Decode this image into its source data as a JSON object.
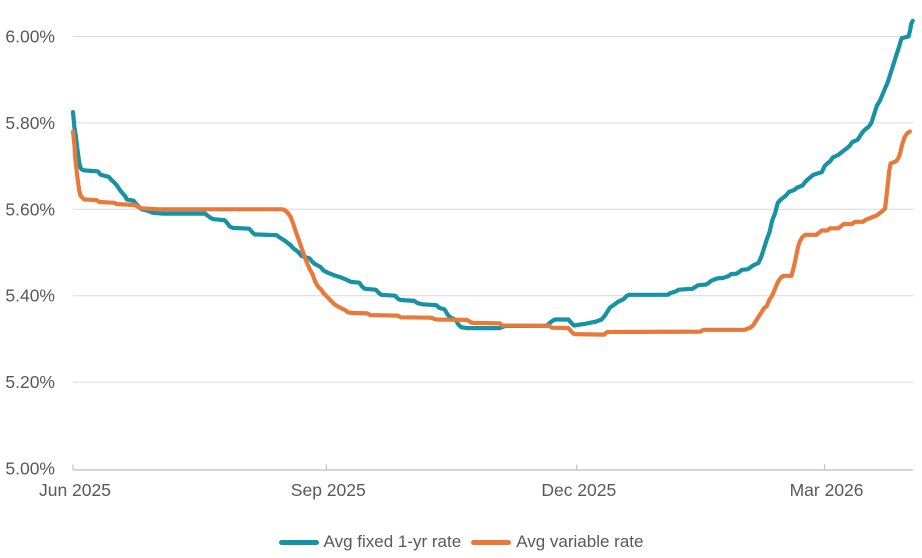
{
  "chart_data": {
    "type": "line",
    "title": "",
    "grid": true,
    "legend_position": "bottom",
    "x_axis": {
      "start_date": "2025-06-01",
      "unit": "days_since_start",
      "tick_labels": [
        "Jun 2025",
        "Sep 2025",
        "Dec 2025",
        "Mar 2026"
      ],
      "tick_days": [
        0,
        92,
        183,
        273
      ],
      "range_days": [
        0,
        305
      ]
    },
    "y_axis": {
      "tick_labels": [
        "5.00%",
        "5.20%",
        "5.40%",
        "5.60%",
        "5.80%",
        "6.00%"
      ],
      "tick_values": [
        5.0,
        5.2,
        5.4,
        5.6,
        5.8,
        6.0
      ],
      "ylim": [
        5.0,
        6.05
      ],
      "format": "percent"
    },
    "series": [
      {
        "key": "fixed-rate-line",
        "name": "Avg fixed 1-yr rate",
        "color": "#1692A4",
        "points": [
          [
            0,
            5.825
          ],
          [
            0.5,
            5.79
          ],
          [
            1,
            5.77
          ],
          [
            1.5,
            5.745
          ],
          [
            2,
            5.72
          ],
          [
            2.5,
            5.7
          ],
          [
            3,
            5.693
          ],
          [
            4,
            5.69
          ],
          [
            9,
            5.688
          ],
          [
            10,
            5.68
          ],
          [
            13,
            5.675
          ],
          [
            14,
            5.668
          ],
          [
            15,
            5.662
          ],
          [
            16,
            5.655
          ],
          [
            17,
            5.645
          ],
          [
            18,
            5.637
          ],
          [
            19,
            5.63
          ],
          [
            19.5,
            5.623
          ],
          [
            22,
            5.62
          ],
          [
            23,
            5.612
          ],
          [
            24,
            5.605
          ],
          [
            25,
            5.6
          ],
          [
            27,
            5.597
          ],
          [
            29,
            5.592
          ],
          [
            33,
            5.59
          ],
          [
            48,
            5.59
          ],
          [
            49,
            5.585
          ],
          [
            50,
            5.58
          ],
          [
            51,
            5.577
          ],
          [
            55,
            5.575
          ],
          [
            56,
            5.568
          ],
          [
            57,
            5.56
          ],
          [
            58,
            5.557
          ],
          [
            64,
            5.555
          ],
          [
            65,
            5.548
          ],
          [
            66,
            5.542
          ],
          [
            74,
            5.54
          ],
          [
            75,
            5.535
          ],
          [
            77,
            5.527
          ],
          [
            79,
            5.517
          ],
          [
            80,
            5.51
          ],
          [
            81,
            5.505
          ],
          [
            82,
            5.5
          ],
          [
            83,
            5.492
          ],
          [
            86,
            5.486
          ],
          [
            87,
            5.478
          ],
          [
            88,
            5.473
          ],
          [
            90,
            5.466
          ],
          [
            91,
            5.458
          ],
          [
            93,
            5.452
          ],
          [
            95,
            5.447
          ],
          [
            97,
            5.443
          ],
          [
            99,
            5.438
          ],
          [
            101,
            5.432
          ],
          [
            104,
            5.43
          ],
          [
            105,
            5.421
          ],
          [
            106,
            5.416
          ],
          [
            110,
            5.414
          ],
          [
            111,
            5.407
          ],
          [
            112,
            5.402
          ],
          [
            117,
            5.4
          ],
          [
            118,
            5.393
          ],
          [
            119,
            5.39
          ],
          [
            124,
            5.388
          ],
          [
            125,
            5.383
          ],
          [
            127,
            5.38
          ],
          [
            132,
            5.378
          ],
          [
            133,
            5.372
          ],
          [
            135,
            5.368
          ],
          [
            136,
            5.357
          ],
          [
            137,
            5.35
          ],
          [
            139,
            5.344
          ],
          [
            140,
            5.333
          ],
          [
            141,
            5.327
          ],
          [
            143,
            5.325
          ],
          [
            155,
            5.325
          ],
          [
            157,
            5.33
          ],
          [
            172,
            5.33
          ],
          [
            173,
            5.336
          ],
          [
            174,
            5.341
          ],
          [
            175,
            5.345
          ],
          [
            180,
            5.345
          ],
          [
            181,
            5.337
          ],
          [
            182,
            5.331
          ],
          [
            186,
            5.335
          ],
          [
            190,
            5.34
          ],
          [
            192,
            5.345
          ],
          [
            193,
            5.352
          ],
          [
            194,
            5.362
          ],
          [
            195,
            5.372
          ],
          [
            197,
            5.381
          ],
          [
            198,
            5.386
          ],
          [
            200,
            5.392
          ],
          [
            201,
            5.399
          ],
          [
            202,
            5.402
          ],
          [
            216,
            5.402
          ],
          [
            217,
            5.406
          ],
          [
            219,
            5.41
          ],
          [
            220,
            5.414
          ],
          [
            225,
            5.416
          ],
          [
            226,
            5.42
          ],
          [
            227,
            5.424
          ],
          [
            230,
            5.426
          ],
          [
            231,
            5.43
          ],
          [
            232,
            5.435
          ],
          [
            234,
            5.44
          ],
          [
            236,
            5.441
          ],
          [
            238,
            5.445
          ],
          [
            239,
            5.45
          ],
          [
            241,
            5.451
          ],
          [
            242,
            5.455
          ],
          [
            243,
            5.46
          ],
          [
            245,
            5.461
          ],
          [
            246,
            5.465
          ],
          [
            247,
            5.47
          ],
          [
            249,
            5.476
          ],
          [
            250,
            5.49
          ],
          [
            251,
            5.51
          ],
          [
            252,
            5.53
          ],
          [
            253,
            5.547
          ],
          [
            254,
            5.575
          ],
          [
            255,
            5.59
          ],
          [
            256,
            5.615
          ],
          [
            257,
            5.622
          ],
          [
            258,
            5.627
          ],
          [
            259,
            5.632
          ],
          [
            260,
            5.64
          ],
          [
            262,
            5.645
          ],
          [
            263,
            5.65
          ],
          [
            265,
            5.655
          ],
          [
            266,
            5.664
          ],
          [
            267,
            5.67
          ],
          [
            268,
            5.675
          ],
          [
            269,
            5.68
          ],
          [
            272,
            5.686
          ],
          [
            273,
            5.7
          ],
          [
            274,
            5.706
          ],
          [
            275,
            5.711
          ],
          [
            276,
            5.72
          ],
          [
            278,
            5.726
          ],
          [
            279,
            5.731
          ],
          [
            280,
            5.736
          ],
          [
            281,
            5.741
          ],
          [
            282,
            5.746
          ],
          [
            283,
            5.755
          ],
          [
            285,
            5.761
          ],
          [
            286,
            5.771
          ],
          [
            287,
            5.78
          ],
          [
            288,
            5.786
          ],
          [
            289,
            5.791
          ],
          [
            290,
            5.8
          ],
          [
            291,
            5.82
          ],
          [
            292,
            5.84
          ],
          [
            293,
            5.85
          ],
          [
            294,
            5.865
          ],
          [
            295,
            5.88
          ],
          [
            296,
            5.895
          ],
          [
            297,
            5.915
          ],
          [
            298,
            5.935
          ],
          [
            299,
            5.955
          ],
          [
            300,
            5.975
          ],
          [
            300.7,
            5.99
          ],
          [
            301,
            5.996
          ],
          [
            303.5,
            6.0
          ],
          [
            304,
            6.012
          ],
          [
            304.5,
            6.03
          ],
          [
            305,
            6.036
          ]
        ]
      },
      {
        "key": "variable-rate-line",
        "name": "Avg variable rate",
        "color": "#E7793A",
        "points": [
          [
            0,
            5.78
          ],
          [
            0.5,
            5.75
          ],
          [
            0.8,
            5.72
          ],
          [
            1.5,
            5.68
          ],
          [
            2.2,
            5.645
          ],
          [
            2.7,
            5.632
          ],
          [
            4,
            5.623
          ],
          [
            8.7,
            5.621
          ],
          [
            9.5,
            5.617
          ],
          [
            15,
            5.615
          ],
          [
            16,
            5.612
          ],
          [
            22.5,
            5.61
          ],
          [
            23.5,
            5.606
          ],
          [
            25,
            5.602
          ],
          [
            31,
            5.6
          ],
          [
            76,
            5.6
          ],
          [
            77,
            5.598
          ],
          [
            78,
            5.592
          ],
          [
            79,
            5.583
          ],
          [
            80,
            5.567
          ],
          [
            81,
            5.547
          ],
          [
            82,
            5.53
          ],
          [
            83,
            5.511
          ],
          [
            84,
            5.492
          ],
          [
            85,
            5.476
          ],
          [
            86,
            5.461
          ],
          [
            87,
            5.45
          ],
          [
            88,
            5.432
          ],
          [
            89,
            5.421
          ],
          [
            90,
            5.415
          ],
          [
            91,
            5.406
          ],
          [
            92.5,
            5.396
          ],
          [
            94,
            5.386
          ],
          [
            95,
            5.38
          ],
          [
            96,
            5.376
          ],
          [
            97.5,
            5.371
          ],
          [
            99,
            5.366
          ],
          [
            100,
            5.361
          ],
          [
            102,
            5.36
          ],
          [
            107,
            5.359
          ],
          [
            108,
            5.355
          ],
          [
            118,
            5.354
          ],
          [
            119,
            5.35
          ],
          [
            130,
            5.349
          ],
          [
            132,
            5.345
          ],
          [
            143,
            5.344
          ],
          [
            145,
            5.337
          ],
          [
            155,
            5.336
          ],
          [
            156,
            5.331
          ],
          [
            173,
            5.33
          ],
          [
            174,
            5.326
          ],
          [
            180,
            5.325
          ],
          [
            181,
            5.317
          ],
          [
            182,
            5.311
          ],
          [
            193,
            5.31
          ],
          [
            194,
            5.316
          ],
          [
            228,
            5.317
          ],
          [
            229,
            5.321
          ],
          [
            244,
            5.321
          ],
          [
            246,
            5.326
          ],
          [
            247,
            5.331
          ],
          [
            248,
            5.341
          ],
          [
            249,
            5.351
          ],
          [
            250,
            5.361
          ],
          [
            251,
            5.371
          ],
          [
            252,
            5.376
          ],
          [
            253,
            5.391
          ],
          [
            254,
            5.401
          ],
          [
            255,
            5.416
          ],
          [
            256,
            5.431
          ],
          [
            257,
            5.441
          ],
          [
            258,
            5.446
          ],
          [
            261,
            5.446
          ],
          [
            262,
            5.471
          ],
          [
            263,
            5.501
          ],
          [
            263.5,
            5.516
          ],
          [
            264,
            5.526
          ],
          [
            265,
            5.536
          ],
          [
            266,
            5.541
          ],
          [
            270,
            5.541
          ],
          [
            271,
            5.546
          ],
          [
            272,
            5.551
          ],
          [
            274,
            5.551
          ],
          [
            275,
            5.556
          ],
          [
            278,
            5.556
          ],
          [
            279,
            5.561
          ],
          [
            280,
            5.566
          ],
          [
            283,
            5.566
          ],
          [
            284,
            5.571
          ],
          [
            287,
            5.571
          ],
          [
            288,
            5.576
          ],
          [
            290,
            5.581
          ],
          [
            292,
            5.586
          ],
          [
            293,
            5.591
          ],
          [
            294,
            5.596
          ],
          [
            295,
            5.602
          ],
          [
            295.5,
            5.63
          ],
          [
            296,
            5.66
          ],
          [
            296.5,
            5.69
          ],
          [
            297,
            5.706
          ],
          [
            299,
            5.711
          ],
          [
            300,
            5.721
          ],
          [
            300.5,
            5.731
          ],
          [
            301,
            5.746
          ],
          [
            302,
            5.766
          ],
          [
            303,
            5.776
          ],
          [
            304,
            5.78
          ]
        ]
      }
    ]
  }
}
